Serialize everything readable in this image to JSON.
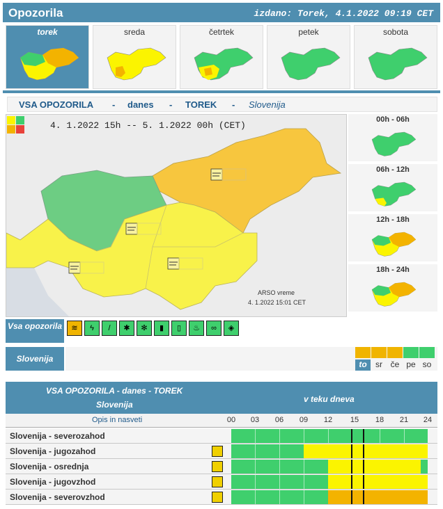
{
  "header": {
    "title": "Opozorila",
    "issued": "izdano: Torek, 4.1.2022 09:19 CET"
  },
  "days": [
    {
      "label": "torek",
      "selected": true
    },
    {
      "label": "sreda",
      "selected": false
    },
    {
      "label": "četrtek",
      "selected": false
    },
    {
      "label": "petek",
      "selected": false
    },
    {
      "label": "sobota",
      "selected": false
    }
  ],
  "section": {
    "all": "VSA OPOZORILA",
    "dash": "-",
    "today": "danes",
    "day": "TOREK",
    "region": "Slovenija"
  },
  "map": {
    "range": "4. 1.2022 15h  --  5. 1.2022 00h  (CET)",
    "source": "ARSO vreme",
    "timestamp": "4. 1.2022  15:01 CET"
  },
  "periods": [
    "00h - 06h",
    "06h - 12h",
    "12h - 18h",
    "18h - 24h"
  ],
  "type_label": "Vsa opozorila",
  "type_icons": [
    "wind-icon",
    "thunderstorm-icon",
    "rain-icon",
    "snow-icon",
    "snow-rain-icon",
    "high-temp-icon",
    "low-temp-icon",
    "fire-icon",
    "fog-icon",
    "ice-icon"
  ],
  "region_label": "Slovenija",
  "day_short": [
    "to",
    "sr",
    "če",
    "pe",
    "so"
  ],
  "day_short_colors": [
    "#f0b400",
    "#f0b400",
    "#f0b400",
    "#3fcf6d",
    "#3fcf6d"
  ],
  "table": {
    "title": "VSA OPOZORILA - danes - TOREK",
    "subtitle": "Slovenija",
    "during": "v teku dneva",
    "desc_header": "Opis in nasveti",
    "hours": [
      "00",
      "03",
      "06",
      "09",
      "12",
      "15",
      "18",
      "21",
      "24"
    ],
    "rows": [
      {
        "name": "Slovenija - severozahod",
        "icon": false
      },
      {
        "name": "Slovenija - jugozahod",
        "icon": true
      },
      {
        "name": "Slovenija - osrednja",
        "icon": true
      },
      {
        "name": "Slovenija - jugovzhod",
        "icon": true
      },
      {
        "name": "Slovenija - severovzhod",
        "icon": true
      }
    ]
  },
  "colors": {
    "green": "#3fcf6d",
    "yellow": "#fbf400",
    "orange": "#f3b300",
    "header": "#4f8eb0"
  }
}
